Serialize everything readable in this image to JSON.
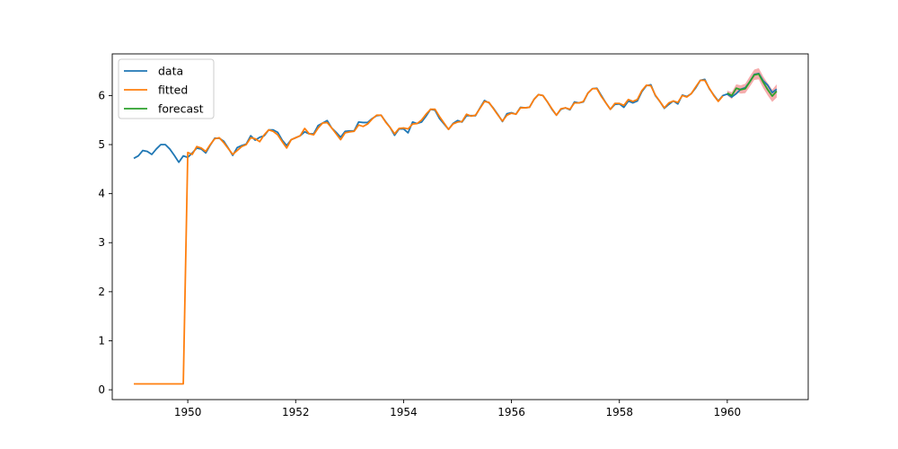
{
  "chart_data": {
    "type": "line",
    "title": "",
    "xlabel": "",
    "ylabel": "",
    "xlim": [
      1948.6,
      1961.5
    ],
    "ylim": [
      -0.2,
      6.85
    ],
    "grid": false,
    "legend_position": "upper-left",
    "x_ticks": [
      1950,
      1952,
      1954,
      1956,
      1958,
      1960
    ],
    "y_ticks": [
      0,
      1,
      2,
      3,
      4,
      5,
      6
    ],
    "x_tick_labels": [
      "1950",
      "1952",
      "1954",
      "1956",
      "1958",
      "1960"
    ],
    "y_tick_labels": [
      "0",
      "1",
      "2",
      "3",
      "4",
      "5",
      "6"
    ],
    "series": [
      {
        "name": "data",
        "color": "#1f77b4",
        "x_start": 1949.0,
        "x_step": 0.0833333,
        "values": [
          4.72,
          4.77,
          4.88,
          4.86,
          4.8,
          4.91,
          5.0,
          5.0,
          4.91,
          4.78,
          4.64,
          4.77,
          4.74,
          4.83,
          4.93,
          4.91,
          4.83,
          4.99,
          5.13,
          5.13,
          5.07,
          4.93,
          4.78,
          4.94,
          4.98,
          5.01,
          5.18,
          5.09,
          5.15,
          5.18,
          5.3,
          5.3,
          5.25,
          5.09,
          4.98,
          5.1,
          5.14,
          5.18,
          5.26,
          5.22,
          5.22,
          5.39,
          5.44,
          5.49,
          5.34,
          5.25,
          5.15,
          5.27,
          5.28,
          5.28,
          5.46,
          5.45,
          5.45,
          5.53,
          5.59,
          5.6,
          5.47,
          5.35,
          5.19,
          5.32,
          5.32,
          5.24,
          5.46,
          5.43,
          5.46,
          5.58,
          5.72,
          5.7,
          5.53,
          5.42,
          5.31,
          5.43,
          5.49,
          5.46,
          5.59,
          5.59,
          5.59,
          5.75,
          5.9,
          5.85,
          5.74,
          5.61,
          5.47,
          5.63,
          5.65,
          5.62,
          5.76,
          5.75,
          5.76,
          5.92,
          6.02,
          6.0,
          5.87,
          5.72,
          5.6,
          5.72,
          5.75,
          5.71,
          5.87,
          5.85,
          5.87,
          6.05,
          6.14,
          6.15,
          6.0,
          5.85,
          5.72,
          5.82,
          5.83,
          5.76,
          5.89,
          5.85,
          5.89,
          6.08,
          6.2,
          6.22,
          6.0,
          5.88,
          5.74,
          5.82,
          5.89,
          5.83,
          6.01,
          5.98,
          6.04,
          6.16,
          6.31,
          6.33,
          6.14,
          6.01,
          5.89,
          6.0,
          6.03,
          5.97,
          6.04,
          6.13,
          6.16,
          6.28,
          6.43,
          6.45,
          6.3,
          6.21,
          6.06,
          6.13
        ]
      },
      {
        "name": "fitted",
        "color": "#ff7f0e",
        "x_start": 1949.0,
        "x_step": 0.0833333,
        "values": [
          0.12,
          0.12,
          0.12,
          0.12,
          0.12,
          0.12,
          0.12,
          0.12,
          0.12,
          0.12,
          0.12,
          0.12,
          4.84,
          4.8,
          4.96,
          4.93,
          4.86,
          5.0,
          5.12,
          5.14,
          5.04,
          4.92,
          4.8,
          4.88,
          4.96,
          5.0,
          5.14,
          5.12,
          5.06,
          5.2,
          5.3,
          5.27,
          5.2,
          5.06,
          4.93,
          5.1,
          5.14,
          5.18,
          5.33,
          5.22,
          5.2,
          5.34,
          5.44,
          5.45,
          5.34,
          5.22,
          5.1,
          5.24,
          5.26,
          5.27,
          5.4,
          5.37,
          5.42,
          5.52,
          5.6,
          5.6,
          5.46,
          5.35,
          5.22,
          5.33,
          5.34,
          5.32,
          5.42,
          5.43,
          5.5,
          5.62,
          5.72,
          5.72,
          5.57,
          5.44,
          5.31,
          5.42,
          5.46,
          5.47,
          5.62,
          5.58,
          5.6,
          5.74,
          5.88,
          5.86,
          5.73,
          5.6,
          5.48,
          5.6,
          5.64,
          5.62,
          5.75,
          5.75,
          5.76,
          5.92,
          6.02,
          6.0,
          5.87,
          5.73,
          5.6,
          5.73,
          5.75,
          5.72,
          5.85,
          5.85,
          5.88,
          6.05,
          6.14,
          6.14,
          5.98,
          5.85,
          5.72,
          5.84,
          5.84,
          5.8,
          5.92,
          5.88,
          5.92,
          6.1,
          6.21,
          6.2,
          6.01,
          5.88,
          5.75,
          5.85,
          5.89,
          5.86,
          6.0,
          5.97,
          6.04,
          6.18,
          6.31,
          6.31,
          6.15,
          6.0,
          5.88,
          5.99
        ]
      },
      {
        "name": "forecast",
        "color": "#2ca02c",
        "x_start": 1960.0,
        "x_step": 0.0833333,
        "values": [
          6.05,
          6.0,
          6.15,
          6.12,
          6.14,
          6.28,
          6.42,
          6.44,
          6.27,
          6.12,
          5.99,
          6.09
        ],
        "lower": [
          6.0,
          5.93,
          6.07,
          6.04,
          6.05,
          6.18,
          6.32,
          6.33,
          6.15,
          6.0,
          5.87,
          5.96
        ],
        "upper": [
          6.1,
          6.07,
          6.23,
          6.21,
          6.24,
          6.39,
          6.53,
          6.56,
          6.39,
          6.25,
          6.12,
          6.23
        ],
        "band_color": "#f4a3a3"
      }
    ]
  }
}
